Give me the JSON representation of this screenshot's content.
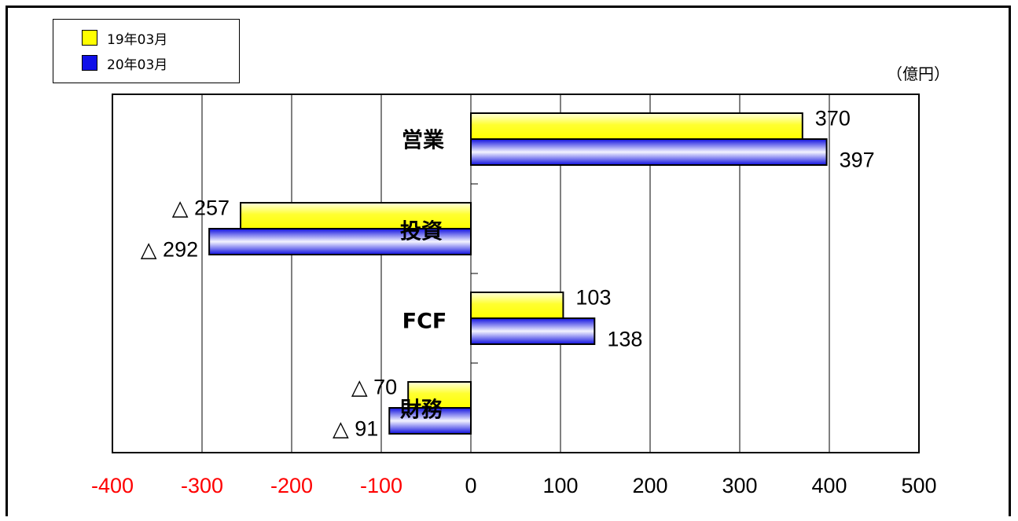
{
  "chart_data": {
    "type": "bar",
    "orientation": "horizontal",
    "unit": "（億円）",
    "categories": [
      "営業",
      "投資",
      "FCF",
      "財務"
    ],
    "series": [
      {
        "name": "19年03月",
        "color": "#ffff00",
        "values": [
          370,
          -257,
          103,
          -70
        ],
        "labels": [
          "370",
          "△ 257",
          "103",
          "△ 70"
        ]
      },
      {
        "name": "20年03月",
        "color": "#1010e8",
        "values": [
          397,
          -292,
          138,
          -91
        ],
        "labels": [
          "397",
          "△ 292",
          "138",
          "△ 91"
        ]
      }
    ],
    "xlim": [
      -400,
      500
    ],
    "xticks": [
      -400,
      -300,
      -200,
      -100,
      0,
      100,
      200,
      300,
      400,
      500
    ],
    "xtick_colors": {
      "negative": "#ff0000",
      "nonnegative": "#000000"
    },
    "grid": true,
    "legend_position": "top-left"
  }
}
